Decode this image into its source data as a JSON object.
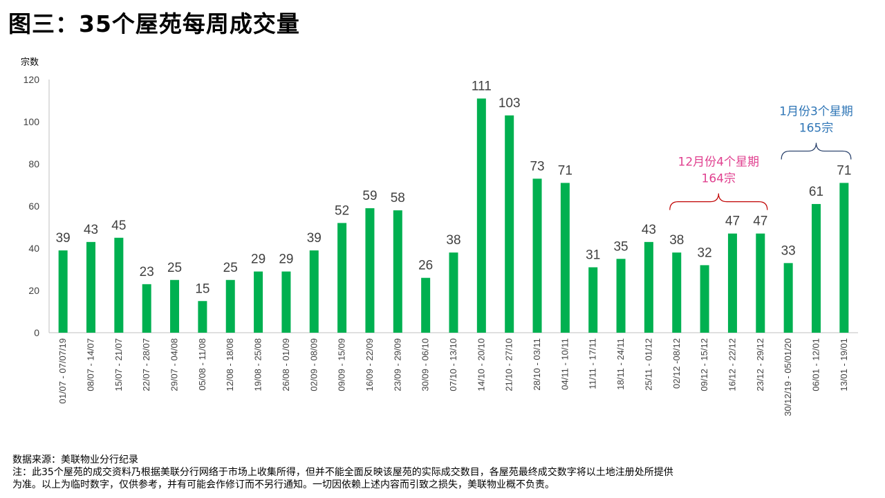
{
  "title": "图三：35个屋苑每周成交量",
  "footer": {
    "source": "数据来源：美联物业分行纪录",
    "note_line1": "注：此35个屋苑的成交资料乃根据美联分行网络于市场上收集所得，但并不能全面反映该屋苑的实际成交数目，各屋苑最终成交数字将以土地注册处所提供",
    "note_line2": "为准。以上为临时数字，仅供参考，并有可能会作修订而不另行通知。一切因依赖上述内容而引致之损失，美联物业概不负责。"
  },
  "chart_data": {
    "type": "bar",
    "ylabel": "宗数",
    "ylim": [
      0,
      120
    ],
    "yticks": [
      0,
      20,
      40,
      60,
      80,
      100,
      120
    ],
    "grid": false,
    "bar_color": "#00B050",
    "categories": [
      "01/07 - 07/07/19",
      "08/07 - 14/07",
      "15/07 - 21/07",
      "22/07 - 28/07",
      "29/07 - 04/08",
      "05/08 - 11/08",
      "12/08 - 18/08",
      "19/08 - 25/08",
      "26/08 - 01/09",
      "02/09 - 08/09",
      "09/09 - 15/09",
      "16/09 - 22/09",
      "23/09 - 29/09",
      "30/09 - 06/10",
      "07/10 - 13/10",
      "14/10 - 20/10",
      "21/10 - 27/10",
      "28/10 - 03/11",
      "04/11 - 10/11",
      "11/11 - 17/11",
      "18/11 - 24/11",
      "25/11 - 01/12",
      "02/12 -08/12",
      "09/12 - 15/12",
      "16/12 - 22/12",
      "23/12 - 29/12",
      "30/12/19 - 05/01/20",
      "06/01 - 12/01",
      "13/01 - 19/01"
    ],
    "values": [
      39,
      43,
      45,
      23,
      25,
      15,
      25,
      29,
      29,
      39,
      52,
      59,
      58,
      26,
      38,
      111,
      103,
      73,
      71,
      31,
      35,
      43,
      38,
      32,
      47,
      47,
      33,
      61,
      71
    ],
    "annotations": [
      {
        "name": "dec",
        "lines": [
          "12月份4个星期",
          "164宗"
        ],
        "color": "#E0408F",
        "brace_color": "#C00000",
        "from": 22,
        "to": 25
      },
      {
        "name": "jan",
        "lines": [
          "1月份3个星期",
          "165宗"
        ],
        "color": "#2E75B6",
        "brace_color": "#1F3864",
        "from": 26,
        "to": 28
      }
    ]
  }
}
